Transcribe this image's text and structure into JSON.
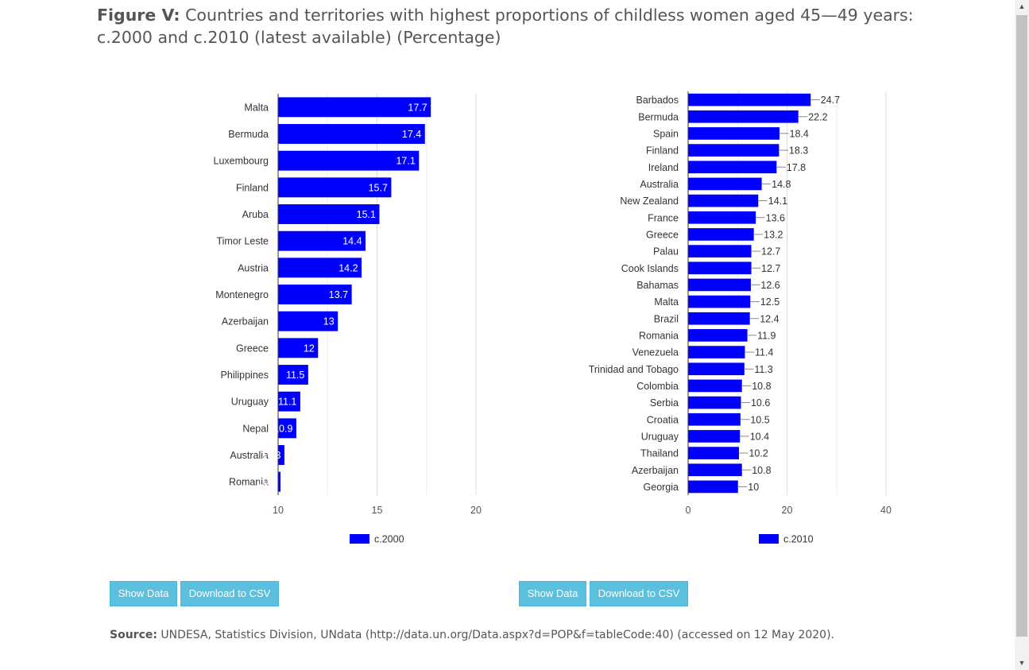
{
  "figure": {
    "title_bold": "Figure V:",
    "title_rest": " Countries and territories with highest proportions of childless women aged 45—49 years: c.2000 and c.2010 (latest available) (Percentage)"
  },
  "chart_data": [
    {
      "type": "bar",
      "orientation": "horizontal",
      "categories": [
        "Malta",
        "Bermuda",
        "Luxembourg",
        "Finland",
        "Aruba",
        "Timor Leste",
        "Austria",
        "Montenegro",
        "Azerbaijan",
        "Greece",
        "Philippines",
        "Uruguay",
        "Nepal",
        "Australia",
        "Romania"
      ],
      "series": [
        {
          "name": "c.2000",
          "values": [
            17.7,
            17.4,
            17.1,
            15.7,
            15.1,
            14.4,
            14.2,
            13.7,
            13,
            12,
            11.5,
            11.1,
            10.9,
            10.3,
            10.1
          ]
        }
      ],
      "xlim": [
        10,
        20
      ],
      "xticks": [
        "10",
        "15",
        "20"
      ],
      "legend": "bottom",
      "label_position": "inside",
      "color": "#0000ff"
    },
    {
      "type": "bar",
      "orientation": "horizontal",
      "categories": [
        "Barbados",
        "Bermuda",
        "Spain",
        "Finland",
        "Ireland",
        "Australia",
        "New Zealand",
        "France",
        "Greece",
        "Palau",
        "Cook Islands",
        "Bahamas",
        "Malta",
        "Brazil",
        "Romania",
        "Venezuela",
        "Trinidad and Tobago",
        "Colombia",
        "Serbia",
        "Croatia",
        "Uruguay",
        "Thailand",
        "Azerbaijan",
        "Georgia"
      ],
      "series": [
        {
          "name": "c.2010",
          "values": [
            24.7,
            22.2,
            18.4,
            18.3,
            17.8,
            14.8,
            14.1,
            13.6,
            13.2,
            12.7,
            12.7,
            12.6,
            12.5,
            12.4,
            11.9,
            11.4,
            11.3,
            10.8,
            10.6,
            10.5,
            10.4,
            10.2,
            10.8,
            10
          ]
        }
      ],
      "xlim": [
        0,
        40
      ],
      "xticks": [
        "0",
        "20",
        "40"
      ],
      "legend": "bottom",
      "label_position": "outside",
      "color": "#0000ff"
    }
  ],
  "buttons": {
    "show_data": "Show Data",
    "download_csv": "Download to CSV"
  },
  "source": {
    "label": "Source:",
    "text": " UNDESA, Statistics Division, UNdata (http://data.un.org/Data.aspx?d=POP&f=tableCode:40) (accessed on 12 May 2020)."
  },
  "scrollbar": {
    "up_icon": "▲",
    "down_icon": "▼"
  }
}
